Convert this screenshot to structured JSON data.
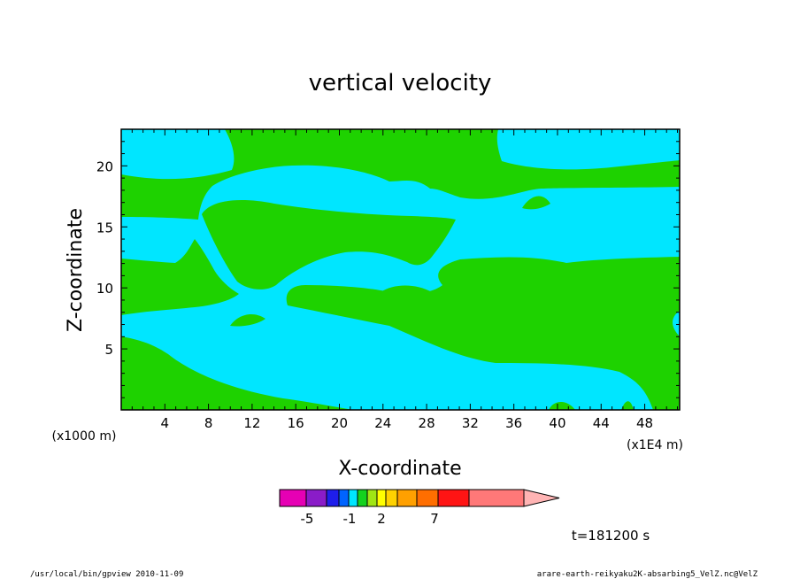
{
  "chart_data": {
    "type": "heatmap",
    "title": "vertical velocity",
    "xlabel": "X-coordinate",
    "ylabel": "Z-coordinate",
    "x_unit": "(x1E4 m)",
    "y_unit": "(x1000 m)",
    "xlim": [
      0,
      51.2
    ],
    "ylim": [
      0,
      23
    ],
    "x_ticks": [
      4,
      8,
      12,
      16,
      20,
      24,
      28,
      32,
      36,
      40,
      44,
      48
    ],
    "y_ticks": [
      5,
      10,
      15,
      20
    ],
    "colorbar": {
      "labels": [
        {
          "text": "-5",
          "value": -5
        },
        {
          "text": "-1",
          "value": -1
        },
        {
          "text": "2",
          "value": 2
        },
        {
          "text": "7",
          "value": 7
        }
      ],
      "bins": [
        {
          "color": "#e600b4"
        },
        {
          "color": "#8a1cc8"
        },
        {
          "color": "#1e1eeb"
        },
        {
          "color": "#0064ff"
        },
        {
          "color": "#00e6ff"
        },
        {
          "color": "#14d21e"
        },
        {
          "color": "#a0e614"
        },
        {
          "color": "#ffff00"
        },
        {
          "color": "#ffd200"
        },
        {
          "color": "#ffa000"
        },
        {
          "color": "#ff6e00"
        },
        {
          "color": "#ff1414"
        },
        {
          "color": "#ff7878"
        }
      ],
      "extension_color": "#ffb4b4"
    },
    "field_colors": {
      "negative": "#00e6ff",
      "positive": "#1ed200"
    },
    "time": "t=181200 s"
  },
  "footer": {
    "left": "/usr/local/bin/gpview   2010-11-09",
    "right": "arare-earth-reikyaku2K-absarbing5_VelZ.nc@VelZ"
  }
}
